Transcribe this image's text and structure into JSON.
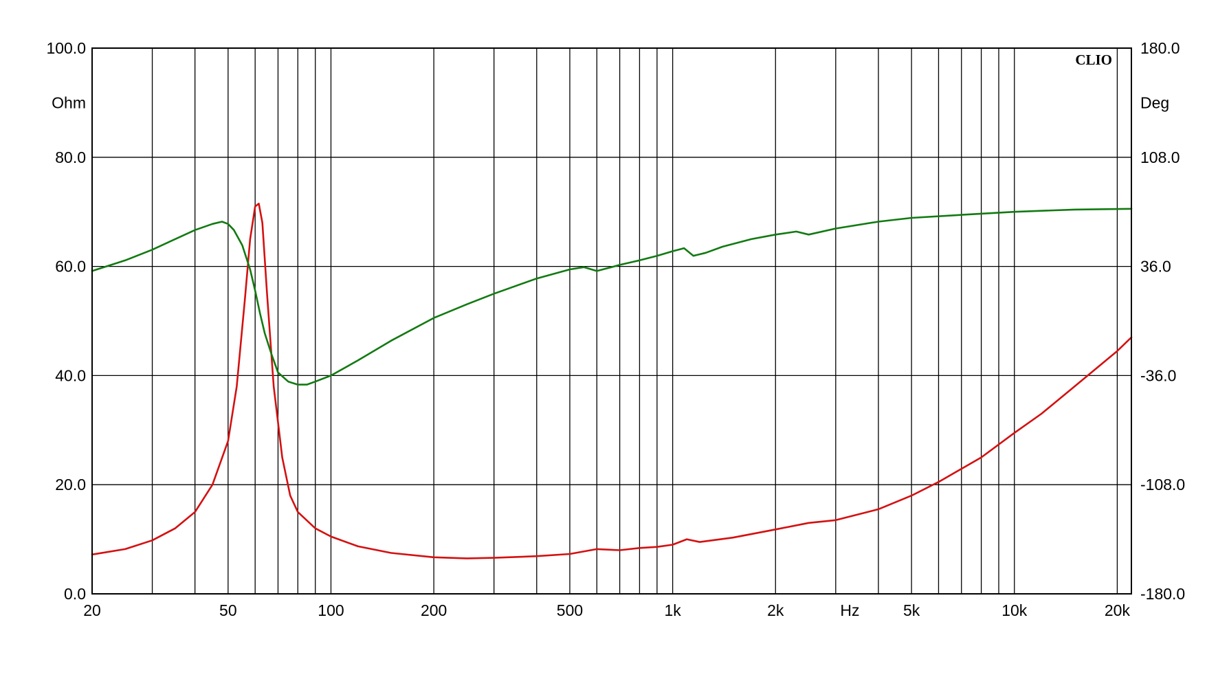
{
  "chart_data": {
    "type": "line",
    "logo": "CLIO",
    "xlabel": "Hz",
    "ylabel_left": "Ohm",
    "ylabel_right": "Deg",
    "x_scale": "log",
    "xlim": [
      20,
      22000
    ],
    "ylim_left": [
      0,
      100
    ],
    "ylim_right": [
      -180,
      180
    ],
    "grid": true,
    "x_ticks": [
      {
        "value": 20,
        "label": "20"
      },
      {
        "value": 50,
        "label": "50"
      },
      {
        "value": 100,
        "label": "100"
      },
      {
        "value": 200,
        "label": "200"
      },
      {
        "value": 500,
        "label": "500"
      },
      {
        "value": 1000,
        "label": "1k"
      },
      {
        "value": 2000,
        "label": "2k"
      },
      {
        "value": 5000,
        "label": "5k"
      },
      {
        "value": 10000,
        "label": "10k"
      },
      {
        "value": 20000,
        "label": "20k"
      }
    ],
    "x_unit_at": 3300,
    "y_ticks_left": [
      "0.0",
      "20.0",
      "40.0",
      "60.0",
      "80.0",
      "100.0"
    ],
    "y_ticks_right": [
      "-180.0",
      "-108.0",
      "-36.0",
      "36.0",
      "108.0",
      "180.0"
    ],
    "series": [
      {
        "axis": "left",
        "color": "#d41010",
        "x": [
          20,
          25,
          30,
          35,
          40,
          45,
          50,
          53,
          56,
          58,
          60,
          61.5,
          63,
          65,
          68,
          72,
          76,
          80,
          90,
          100,
          120,
          150,
          200,
          250,
          300,
          400,
          500,
          600,
          700,
          800,
          900,
          1000,
          1100,
          1200,
          1500,
          2000,
          2500,
          3000,
          4000,
          5000,
          6000,
          8000,
          10000,
          12000,
          15000,
          20000,
          22000
        ],
        "values": [
          7.2,
          8.2,
          9.8,
          12.0,
          15.0,
          20.0,
          28.0,
          38.0,
          54.0,
          65.0,
          71.0,
          71.5,
          68.0,
          55.0,
          38.0,
          25.0,
          18.0,
          15.0,
          12.0,
          10.5,
          8.7,
          7.5,
          6.7,
          6.5,
          6.6,
          6.9,
          7.3,
          8.2,
          8.0,
          8.4,
          8.6,
          9.0,
          10.0,
          9.5,
          10.3,
          11.8,
          13.0,
          13.5,
          15.5,
          18.0,
          20.5,
          25.0,
          29.5,
          33.0,
          38.0,
          44.5,
          47.0
        ]
      },
      {
        "axis": "right",
        "color": "#117a11",
        "x": [
          20,
          25,
          30,
          35,
          40,
          45,
          48,
          50,
          52,
          55,
          58,
          60,
          62,
          64,
          67,
          70,
          75,
          80,
          85,
          90,
          100,
          120,
          150,
          200,
          250,
          300,
          400,
          500,
          550,
          600,
          650,
          700,
          800,
          900,
          1000,
          1080,
          1150,
          1250,
          1400,
          1700,
          2000,
          2300,
          2500,
          3000,
          4000,
          5000,
          7000,
          10000,
          15000,
          22000
        ],
        "values": [
          33.0,
          40.0,
          47.0,
          54.0,
          60.0,
          64.0,
          65.5,
          64.0,
          60.0,
          50.0,
          34.0,
          20.0,
          5.0,
          -8.0,
          -22.0,
          -34.0,
          -40.0,
          -42.0,
          -42.0,
          -40.0,
          -36.0,
          -26.0,
          -13.0,
          2.0,
          11.0,
          18.0,
          28.0,
          34.0,
          35.5,
          33.0,
          35.0,
          37.0,
          40.0,
          43.0,
          46.0,
          48.0,
          43.0,
          45.0,
          49.0,
          54.0,
          57.0,
          59.0,
          57.0,
          61.0,
          65.5,
          68.0,
          70.0,
          72.0,
          73.5,
          74.0
        ]
      }
    ]
  }
}
